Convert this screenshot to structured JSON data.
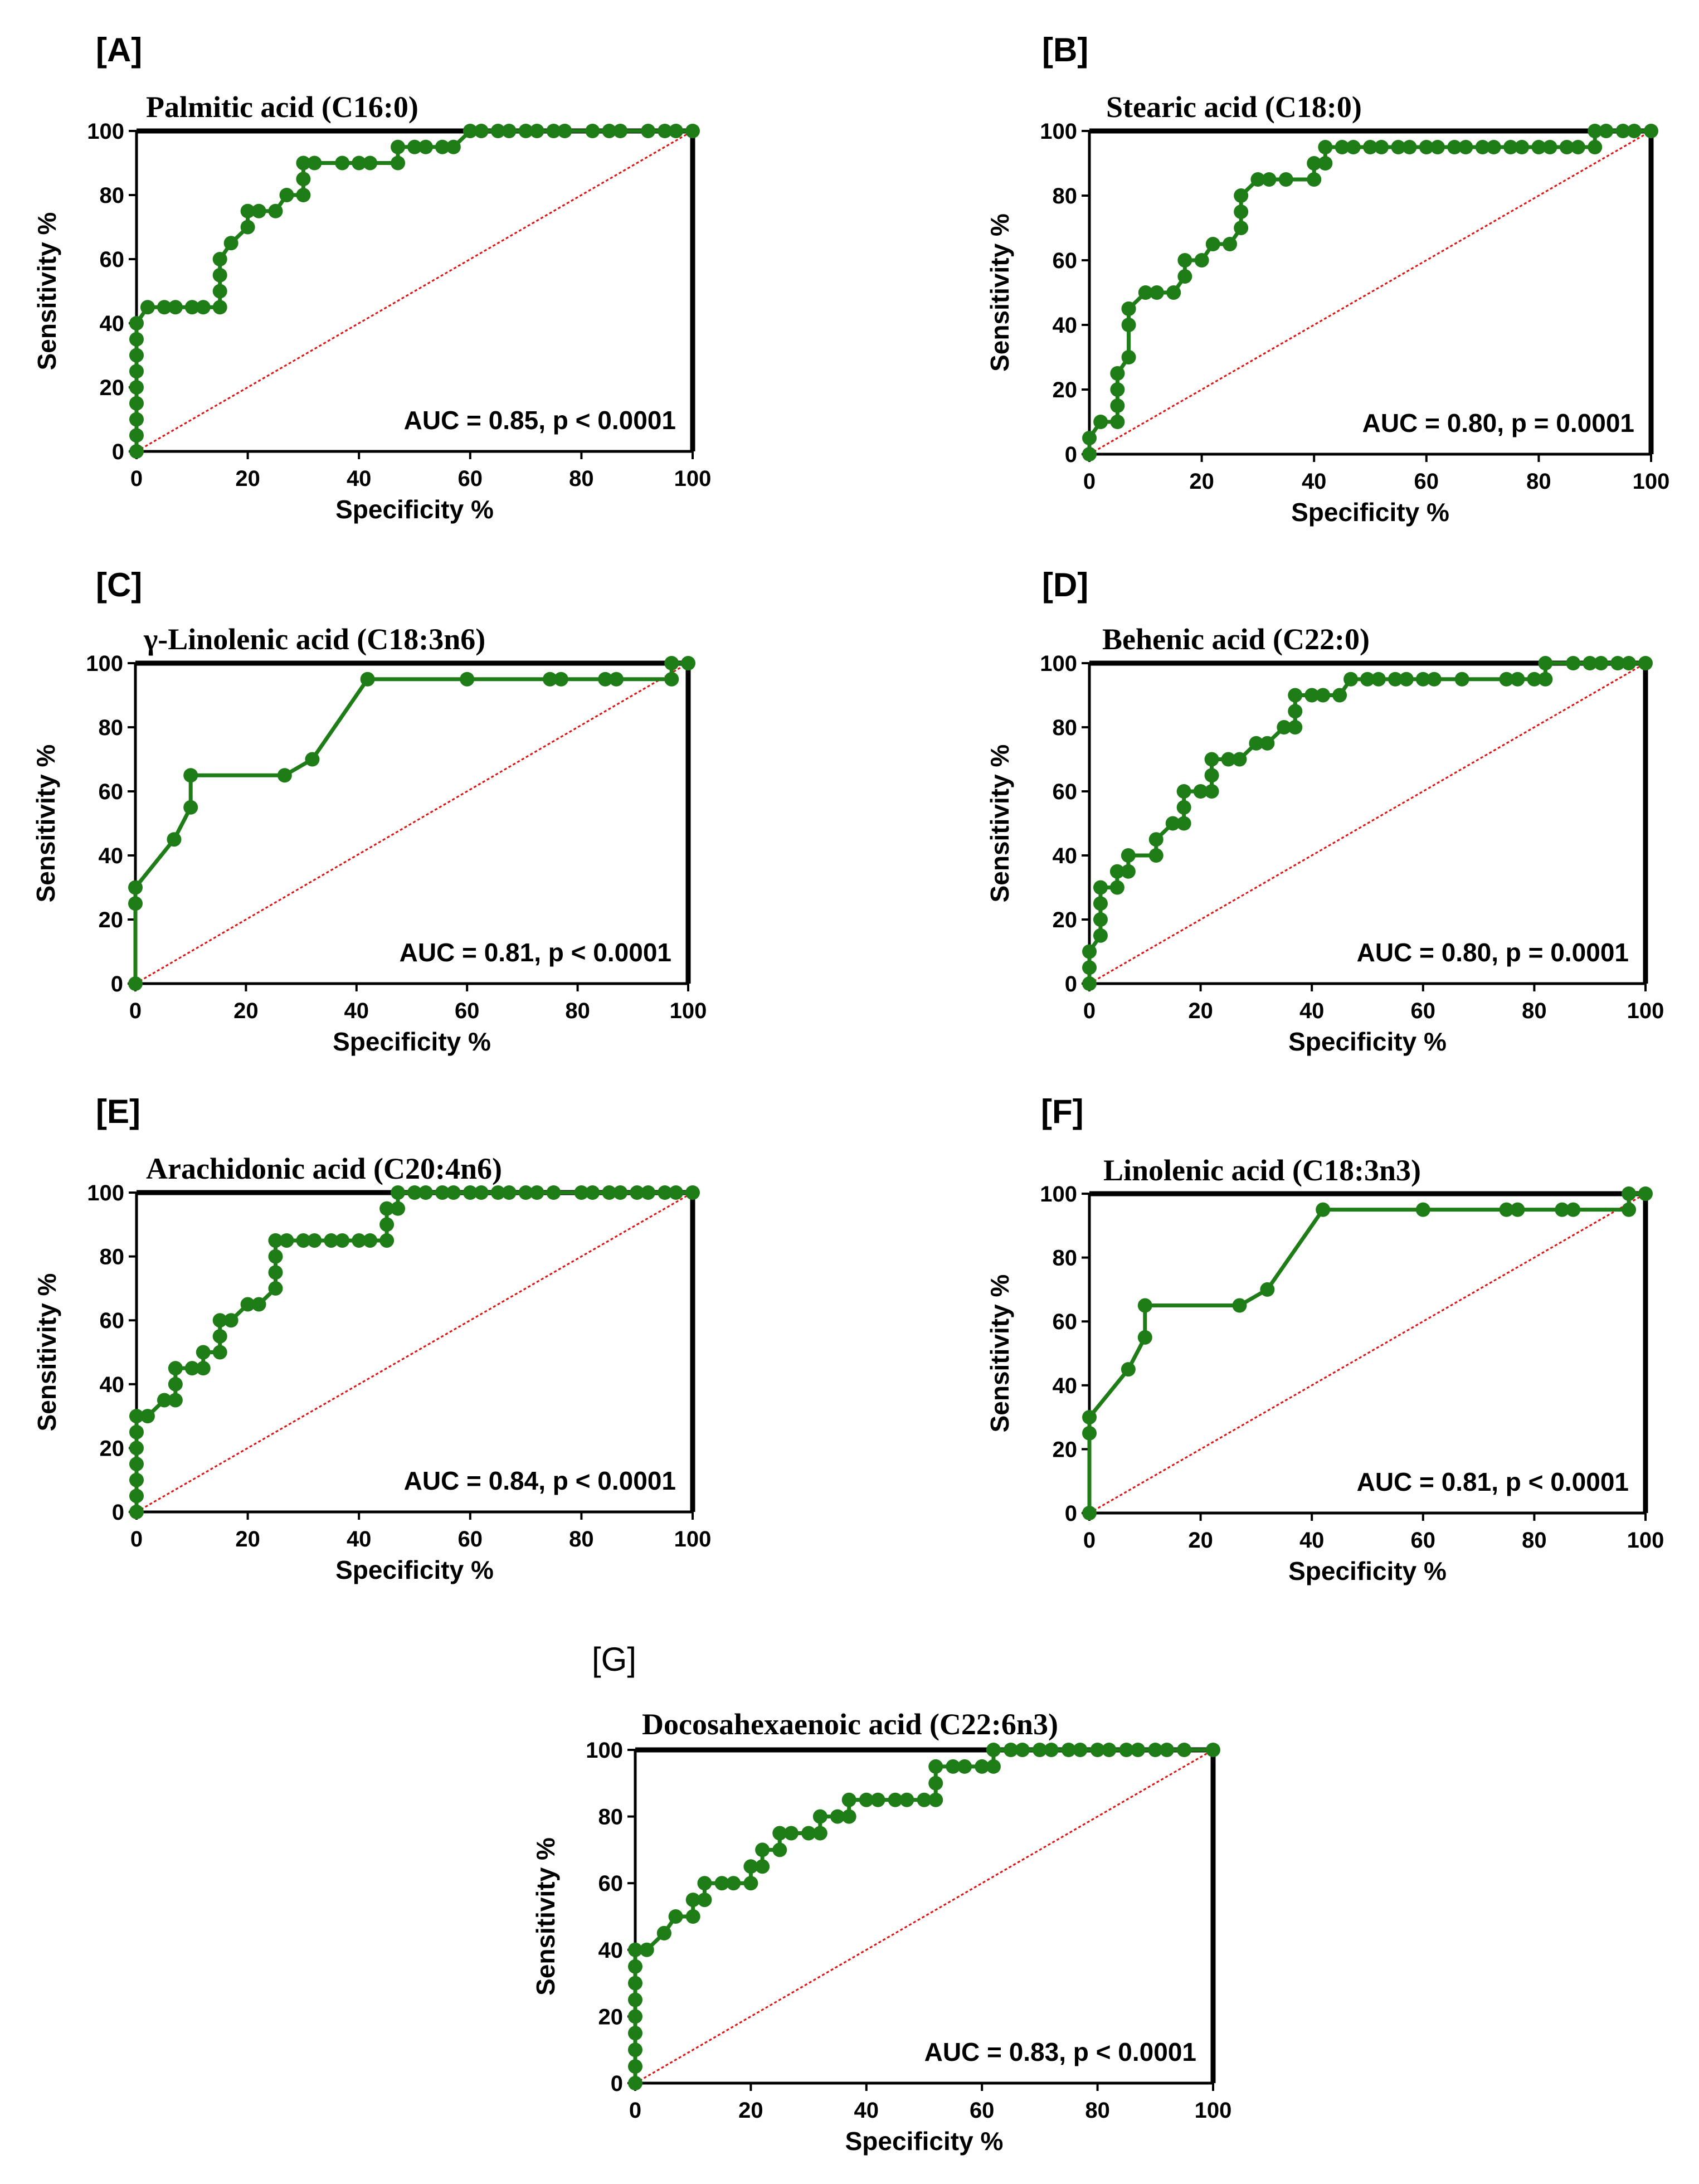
{
  "colors": {
    "roc_line": "#1e7d16",
    "diagonal": "#e01010",
    "axis": "#000000"
  },
  "chart_data": [
    {
      "type": "line",
      "panel_label": "[A]",
      "title": "Palmitic acid (C16:0)",
      "xlabel": "Specificity %",
      "ylabel": "Sensitivity %",
      "xlim": [
        0,
        100
      ],
      "ylim": [
        0,
        100
      ],
      "xticks": [
        "0",
        "20",
        "40",
        "60",
        "80",
        "100"
      ],
      "yticks": [
        "0",
        "20",
        "40",
        "60",
        "80",
        "100"
      ],
      "annotation": "AUC = 0.85, p < 0.0001",
      "series": [
        {
          "name": "ROC",
          "x": [
            0,
            0,
            0,
            0,
            0,
            0,
            0,
            0,
            0,
            2,
            5,
            7,
            10,
            12,
            15,
            15,
            15,
            15,
            17,
            20,
            20,
            22,
            25,
            27,
            30,
            30,
            30,
            32,
            37,
            40,
            42,
            47,
            47,
            50,
            52,
            55,
            57,
            60,
            62,
            65,
            67,
            70,
            72,
            75,
            77,
            82,
            85,
            87,
            92,
            95,
            97,
            100
          ],
          "y": [
            0,
            5,
            10,
            15,
            20,
            25,
            30,
            35,
            40,
            45,
            45,
            45,
            45,
            45,
            45,
            50,
            55,
            60,
            65,
            70,
            75,
            75,
            75,
            80,
            80,
            85,
            90,
            90,
            90,
            90,
            90,
            90,
            95,
            95,
            95,
            95,
            95,
            100,
            100,
            100,
            100,
            100,
            100,
            100,
            100,
            100,
            100,
            100,
            100,
            100,
            100,
            100
          ]
        }
      ]
    },
    {
      "type": "line",
      "panel_label": "[B]",
      "title": "Stearic acid (C18:0)",
      "xlabel": "Specificity %",
      "ylabel": "Sensitivity %",
      "xlim": [
        0,
        100
      ],
      "ylim": [
        0,
        100
      ],
      "xticks": [
        "0",
        "20",
        "40",
        "60",
        "80",
        "100"
      ],
      "yticks": [
        "0",
        "20",
        "40",
        "60",
        "80",
        "100"
      ],
      "annotation": "AUC = 0.80, p = 0.0001",
      "series": [
        {
          "name": "ROC",
          "x": [
            0,
            0,
            2,
            5,
            5,
            5,
            5,
            5,
            7,
            7,
            7,
            7,
            10,
            12,
            15,
            17,
            17,
            20,
            22,
            25,
            27,
            27,
            27,
            30,
            32,
            35,
            40,
            40,
            42,
            42,
            45,
            47,
            50,
            52,
            55,
            57,
            60,
            62,
            65,
            67,
            70,
            72,
            75,
            77,
            80,
            82,
            85,
            87,
            90,
            90,
            92,
            95,
            97,
            100
          ],
          "y": [
            0,
            5,
            10,
            10,
            15,
            20,
            25,
            25,
            30,
            40,
            45,
            45,
            50,
            50,
            50,
            55,
            60,
            60,
            65,
            65,
            70,
            75,
            80,
            85,
            85,
            85,
            85,
            90,
            90,
            95,
            95,
            95,
            95,
            95,
            95,
            95,
            95,
            95,
            95,
            95,
            95,
            95,
            95,
            95,
            95,
            95,
            95,
            95,
            95,
            100,
            100,
            100,
            100,
            100
          ]
        }
      ]
    },
    {
      "type": "line",
      "panel_label": "[C]",
      "title": "γ-Linolenic acid (C18:3n6)",
      "xlabel": "Specificity %",
      "ylabel": "Sensitivity %",
      "xlim": [
        0,
        100
      ],
      "ylim": [
        0,
        100
      ],
      "xticks": [
        "0",
        "20",
        "40",
        "60",
        "80",
        "100"
      ],
      "yticks": [
        "0",
        "20",
        "40",
        "60",
        "80",
        "100"
      ],
      "annotation": "AUC = 0.81, p < 0.0001",
      "series": [
        {
          "name": "ROC",
          "x": [
            0,
            0,
            0,
            7,
            10,
            10,
            27,
            32,
            42,
            60,
            75,
            77,
            85,
            87,
            97,
            97,
            100
          ],
          "y": [
            0,
            25,
            30,
            45,
            55,
            65,
            65,
            70,
            95,
            95,
            95,
            95,
            95,
            95,
            95,
            100,
            100
          ]
        }
      ]
    },
    {
      "type": "line",
      "panel_label": "[D]",
      "title": "Behenic acid (C22:0)",
      "xlabel": "Specificity %",
      "ylabel": "Sensitivity %",
      "xlim": [
        0,
        100
      ],
      "ylim": [
        0,
        100
      ],
      "xticks": [
        "0",
        "20",
        "40",
        "60",
        "80",
        "100"
      ],
      "yticks": [
        "0",
        "20",
        "40",
        "60",
        "80",
        "100"
      ],
      "annotation": "AUC = 0.80, p = 0.0001",
      "series": [
        {
          "name": "ROC",
          "x": [
            0,
            0,
            0,
            2,
            2,
            2,
            2,
            5,
            5,
            7,
            7,
            12,
            12,
            15,
            17,
            17,
            17,
            20,
            22,
            22,
            22,
            25,
            27,
            30,
            32,
            35,
            37,
            37,
            37,
            40,
            42,
            45,
            47,
            50,
            52,
            55,
            57,
            60,
            62,
            67,
            75,
            77,
            80,
            82,
            82,
            87,
            90,
            92,
            95,
            97,
            100
          ],
          "y": [
            0,
            5,
            10,
            15,
            20,
            25,
            30,
            30,
            35,
            35,
            40,
            40,
            45,
            50,
            50,
            55,
            60,
            60,
            60,
            65,
            70,
            70,
            70,
            75,
            75,
            80,
            80,
            85,
            90,
            90,
            90,
            90,
            95,
            95,
            95,
            95,
            95,
            95,
            95,
            95,
            95,
            95,
            95,
            95,
            100,
            100,
            100,
            100,
            100,
            100,
            100
          ]
        }
      ]
    },
    {
      "type": "line",
      "panel_label": "[E]",
      "title": "Arachidonic acid (C20:4n6)",
      "xlabel": "Specificity %",
      "ylabel": "Sensitivity %",
      "xlim": [
        0,
        100
      ],
      "ylim": [
        0,
        100
      ],
      "xticks": [
        "0",
        "20",
        "40",
        "60",
        "80",
        "100"
      ],
      "yticks": [
        "0",
        "20",
        "40",
        "60",
        "80",
        "100"
      ],
      "annotation": "AUC = 0.84, p < 0.0001",
      "series": [
        {
          "name": "ROC",
          "x": [
            0,
            0,
            0,
            0,
            0,
            0,
            0,
            2,
            5,
            7,
            7,
            7,
            10,
            12,
            12,
            15,
            15,
            15,
            17,
            20,
            22,
            25,
            25,
            25,
            25,
            25,
            27,
            30,
            32,
            35,
            37,
            40,
            42,
            45,
            45,
            45,
            47,
            47,
            50,
            52,
            55,
            57,
            60,
            62,
            65,
            67,
            70,
            72,
            75,
            80,
            82,
            85,
            87,
            90,
            92,
            95,
            97,
            100
          ],
          "y": [
            0,
            5,
            10,
            15,
            20,
            25,
            30,
            30,
            35,
            35,
            40,
            45,
            45,
            45,
            50,
            50,
            55,
            60,
            60,
            65,
            65,
            70,
            75,
            80,
            85,
            85,
            85,
            85,
            85,
            85,
            85,
            85,
            85,
            85,
            90,
            95,
            95,
            100,
            100,
            100,
            100,
            100,
            100,
            100,
            100,
            100,
            100,
            100,
            100,
            100,
            100,
            100,
            100,
            100,
            100,
            100,
            100,
            100
          ]
        }
      ]
    },
    {
      "type": "line",
      "panel_label": "[F]",
      "title": "Linolenic acid (C18:3n3)",
      "xlabel": "Specificity %",
      "ylabel": "Sensitivity %",
      "xlim": [
        0,
        100
      ],
      "ylim": [
        0,
        100
      ],
      "xticks": [
        "0",
        "20",
        "40",
        "60",
        "80",
        "100"
      ],
      "yticks": [
        "0",
        "20",
        "40",
        "60",
        "80",
        "100"
      ],
      "annotation": "AUC = 0.81, p < 0.0001",
      "series": [
        {
          "name": "ROC",
          "x": [
            0,
            0,
            0,
            7,
            10,
            10,
            27,
            32,
            42,
            60,
            75,
            77,
            85,
            87,
            97,
            97,
            100
          ],
          "y": [
            0,
            25,
            30,
            45,
            55,
            65,
            65,
            70,
            95,
            95,
            95,
            95,
            95,
            95,
            95,
            100,
            100
          ]
        }
      ]
    },
    {
      "type": "line",
      "panel_label": "[G]",
      "title": "Docosahexaenoic acid (C22:6n3)",
      "xlabel": "Specificity %",
      "ylabel": "Sensitivity %",
      "xlim": [
        0,
        100
      ],
      "ylim": [
        0,
        100
      ],
      "xticks": [
        "0",
        "20",
        "40",
        "60",
        "80",
        "100"
      ],
      "yticks": [
        "0",
        "20",
        "40",
        "60",
        "80",
        "100"
      ],
      "annotation": "AUC = 0.83, p < 0.0001",
      "series": [
        {
          "name": "ROC",
          "x": [
            0,
            0,
            0,
            0,
            0,
            0,
            0,
            0,
            0,
            2,
            5,
            5,
            7,
            10,
            10,
            12,
            12,
            15,
            17,
            20,
            20,
            22,
            22,
            25,
            25,
            27,
            30,
            32,
            32,
            35,
            37,
            37,
            40,
            42,
            45,
            47,
            50,
            52,
            52,
            52,
            55,
            57,
            60,
            62,
            62,
            65,
            67,
            70,
            72,
            75,
            77,
            80,
            82,
            85,
            87,
            90,
            92,
            95,
            100
          ],
          "y": [
            0,
            5,
            10,
            15,
            20,
            25,
            30,
            35,
            40,
            40,
            45,
            45,
            50,
            50,
            55,
            55,
            60,
            60,
            60,
            60,
            65,
            65,
            70,
            70,
            75,
            75,
            75,
            75,
            80,
            80,
            80,
            85,
            85,
            85,
            85,
            85,
            85,
            85,
            90,
            95,
            95,
            95,
            95,
            95,
            100,
            100,
            100,
            100,
            100,
            100,
            100,
            100,
            100,
            100,
            100,
            100,
            100,
            100,
            100
          ]
        }
      ]
    }
  ]
}
